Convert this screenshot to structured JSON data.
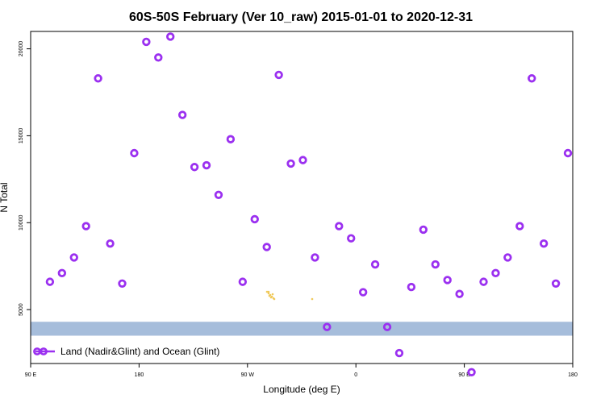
{
  "chart_data": {
    "type": "scatter",
    "title": "60S-50S February (Ver 10_raw)   2015-01-01 to 2020-12-31",
    "xlabel": "Longitude (deg E)",
    "ylabel": "N Total",
    "x_ticks": [
      {
        "value": 90,
        "label": "90 E"
      },
      {
        "value": 180,
        "label": "180"
      },
      {
        "value": 270,
        "label": "90 W"
      },
      {
        "value": 360,
        "label": "0"
      },
      {
        "value": 450,
        "label": "90 E"
      },
      {
        "value": 540,
        "label": "180"
      }
    ],
    "xlim": [
      90,
      540
    ],
    "y_ticks": [
      5000,
      10000,
      15000,
      20000
    ],
    "ylim": [
      1900,
      21000
    ],
    "grid": false,
    "marker_color": "#9b30f0",
    "land_band": {
      "y_min": 3500,
      "y_max": 4300,
      "color": "#a6bddb"
    },
    "land_feature_color": "#f0c95a",
    "legend": {
      "position": "bottom-left",
      "label": "Land (Nadir&Glint) and Ocean (Glint)"
    },
    "series": [
      {
        "x": [
          106,
          116,
          126,
          136,
          146,
          156,
          166,
          176,
          186,
          196,
          206,
          216,
          226,
          236,
          246,
          256,
          266,
          276,
          286,
          296,
          306,
          316,
          326,
          336,
          346,
          356,
          366,
          376,
          386,
          396,
          406,
          416,
          426,
          436,
          446,
          456,
          466,
          476,
          486,
          496,
          506,
          516,
          526,
          536
        ],
        "y": [
          6600,
          7100,
          8000,
          9800,
          18300,
          8800,
          6500,
          14000,
          20400,
          19500,
          20700,
          16200,
          13200,
          13300,
          11600,
          14800,
          6600,
          10200,
          8600,
          18500,
          13400,
          13600,
          8000,
          4000,
          9800,
          9100,
          6000,
          7600,
          4000,
          2500,
          6300,
          9600,
          7600,
          6700,
          5900,
          1400,
          6600,
          7100,
          8000,
          9800,
          18300,
          8800,
          6500,
          14000
        ]
      }
    ]
  }
}
